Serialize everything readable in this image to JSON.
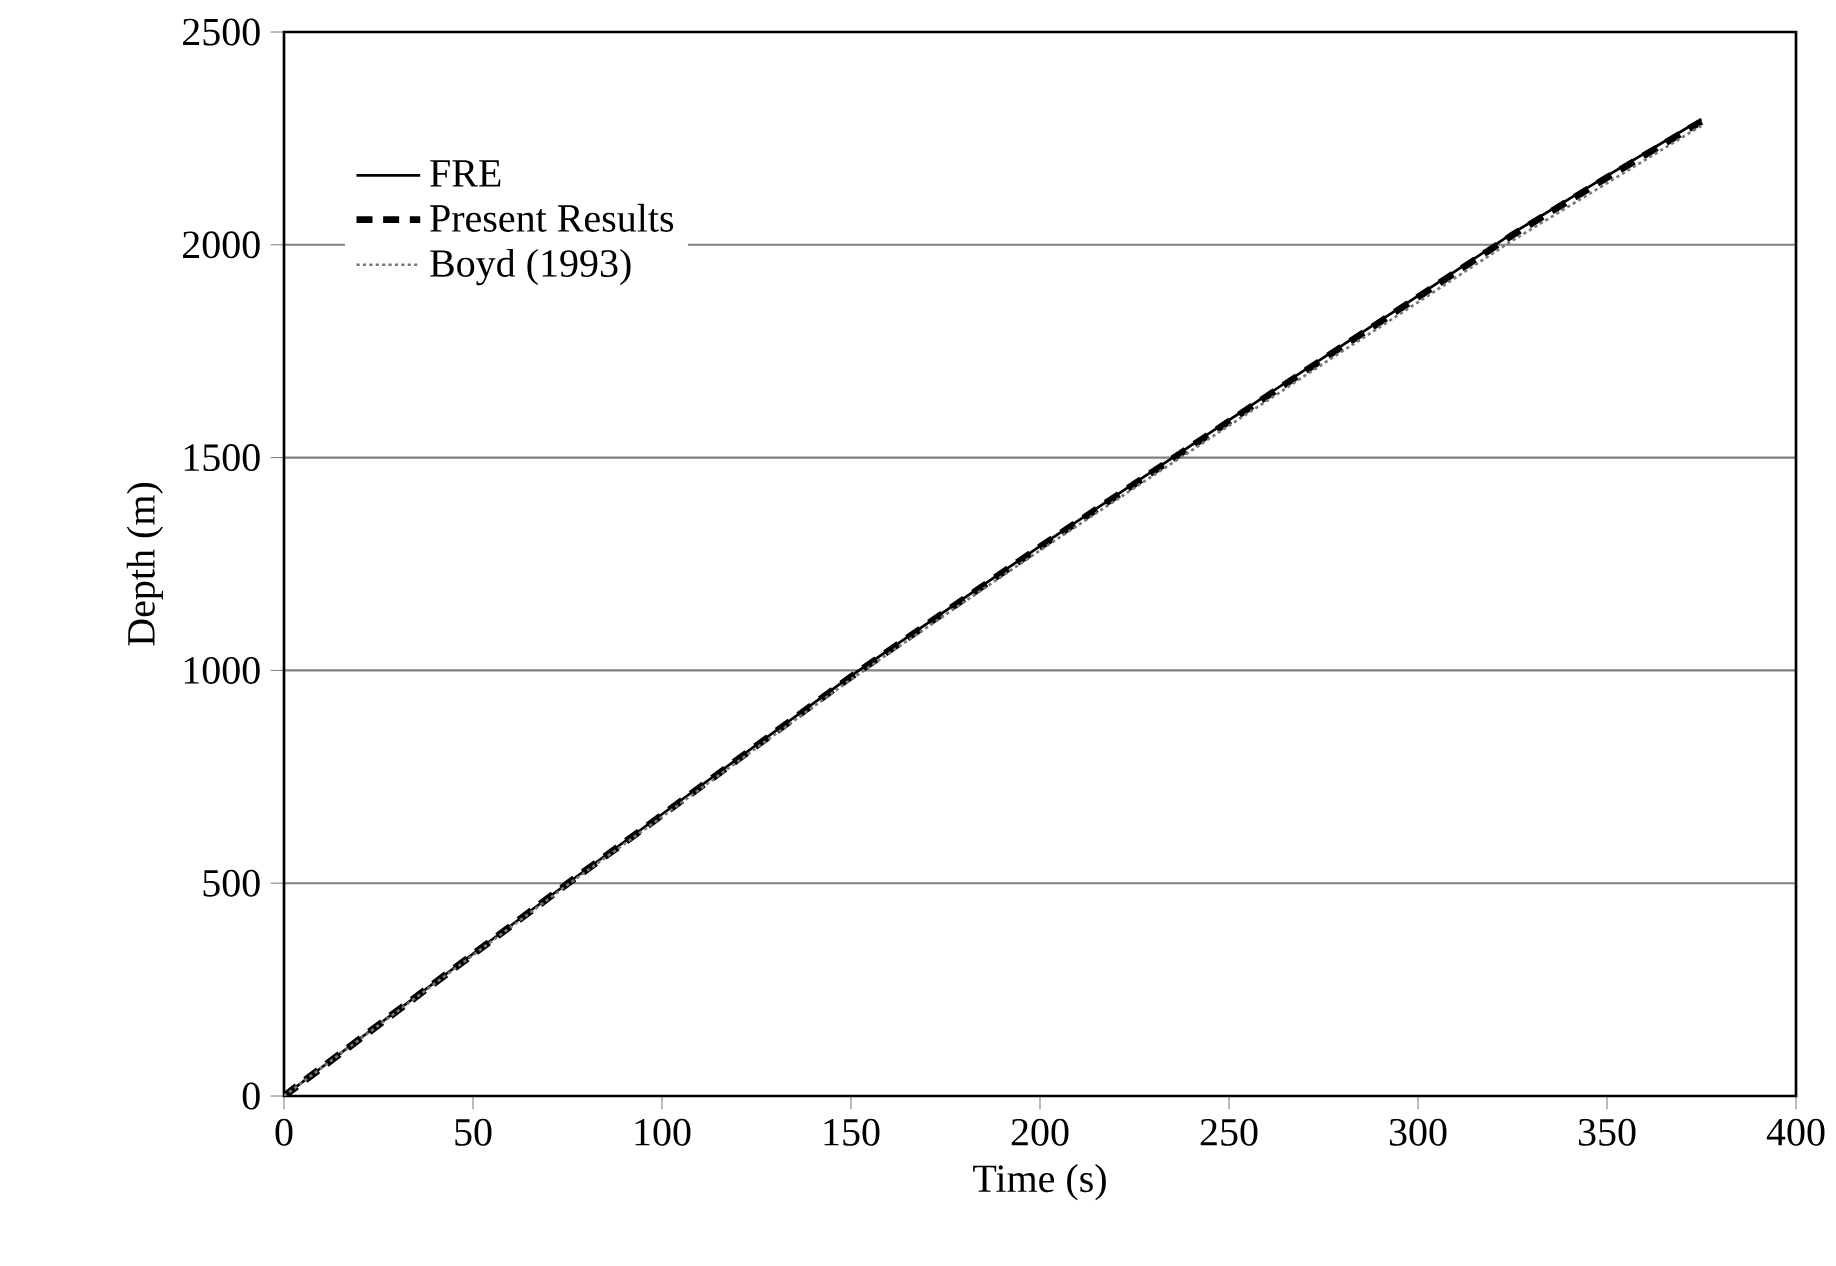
{
  "chart_data": {
    "type": "line",
    "xlabel": "Time (s)",
    "ylabel": "Depth (m)",
    "x": [
      0,
      25,
      50,
      75,
      100,
      125,
      150,
      175,
      200,
      225,
      250,
      275,
      300,
      325,
      350,
      375
    ],
    "series": [
      {
        "name": "FRE",
        "color": "#000000",
        "line_style": "solid",
        "values": [
          0,
          168,
          334,
          500,
          662,
          825,
          987,
          1140,
          1292,
          1440,
          1588,
          1735,
          1880,
          2027,
          2162,
          2295
        ]
      },
      {
        "name": "Present Results",
        "color": "#000000",
        "line_style": "dashed",
        "values": [
          0,
          167,
          333,
          499,
          660,
          823,
          985,
          1138,
          1290,
          1438,
          1585,
          1732,
          1877,
          2023,
          2158,
          2290
        ]
      },
      {
        "name": "Boyd (1993)",
        "color": "#777777",
        "line_style": "dotted",
        "values": [
          0,
          166,
          331,
          496,
          656,
          818,
          979,
          1131,
          1282,
          1429,
          1575,
          1721,
          1865,
          2010,
          2145,
          2280
        ]
      }
    ],
    "xlim": [
      0,
      400
    ],
    "xticks": [
      0,
      50,
      100,
      150,
      200,
      250,
      300,
      350,
      400
    ],
    "ylim": [
      0,
      2500
    ],
    "yticks": [
      0,
      500,
      1000,
      1500,
      2000,
      2500
    ],
    "grid": "y",
    "legend": "top left",
    "marker": "none"
  }
}
